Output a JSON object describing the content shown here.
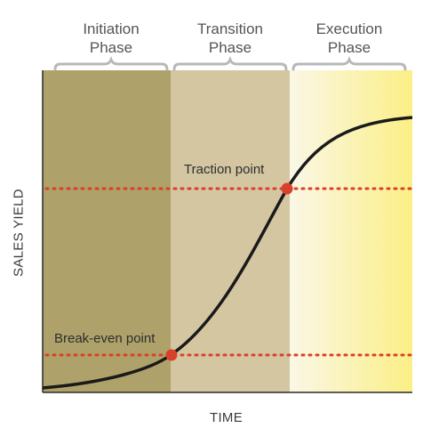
{
  "phases": [
    {
      "name": "Initiation\nPhase",
      "fill": "#aea16a"
    },
    {
      "name": "Transition\nPhase",
      "fill": "#d3c6a1"
    },
    {
      "name": "Execution\nPhase",
      "fill": "#fbf08a"
    }
  ],
  "axes": {
    "x_label": "TIME",
    "y_label": "SALES YIELD"
  },
  "points": {
    "traction": {
      "label": "Traction point"
    },
    "break_even": {
      "label": "Break-even point"
    }
  },
  "colors": {
    "curve": "#1a1a1a",
    "marker": "#d9402b",
    "dotted_line": "#d9402b",
    "brace": "#b8b8b8"
  }
}
